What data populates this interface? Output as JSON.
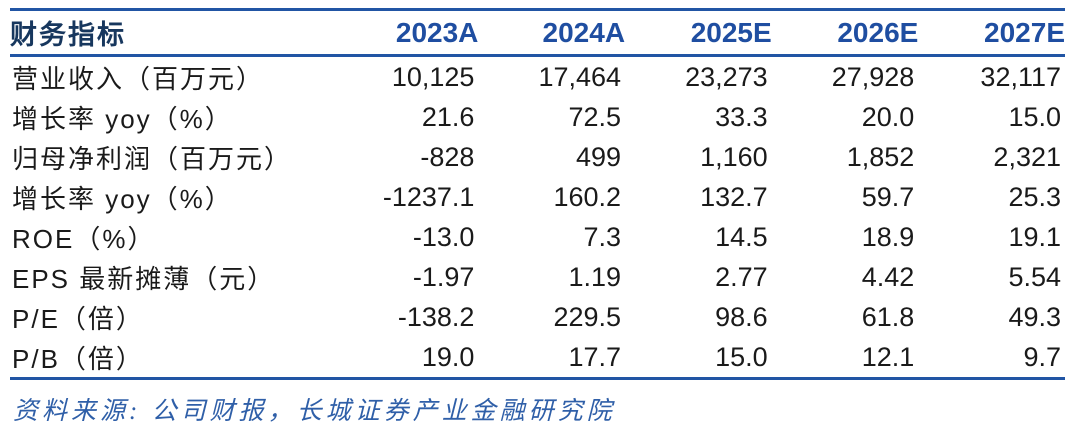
{
  "colors": {
    "rule_blue": "#2155A4",
    "header_label_navy": "#17375E",
    "header_year_blue": "#1F4EA1",
    "body_text": "#1a1a1a",
    "source_note_blue": "#2F5FA8",
    "background": "#ffffff"
  },
  "chart_data": {
    "type": "table",
    "title": "",
    "columns": [
      "财务指标",
      "2023A",
      "2024A",
      "2025E",
      "2026E",
      "2027E"
    ],
    "rows": [
      {
        "label": "营业收入（百万元）",
        "values": [
          "10,125",
          "17,464",
          "23,273",
          "27,928",
          "32,117"
        ]
      },
      {
        "label": "增长率 yoy（%）",
        "values": [
          "21.6",
          "72.5",
          "33.3",
          "20.0",
          "15.0"
        ]
      },
      {
        "label": "归母净利润（百万元）",
        "values": [
          "-828",
          "499",
          "1,160",
          "1,852",
          "2,321"
        ]
      },
      {
        "label": "增长率 yoy（%）",
        "values": [
          "-1237.1",
          "160.2",
          "132.7",
          "59.7",
          "25.3"
        ]
      },
      {
        "label": "ROE（%）",
        "values": [
          "-13.0",
          "7.3",
          "14.5",
          "18.9",
          "19.1"
        ]
      },
      {
        "label": "EPS 最新摊薄（元）",
        "values": [
          "-1.97",
          "1.19",
          "2.77",
          "4.42",
          "5.54"
        ]
      },
      {
        "label": "P/E（倍）",
        "values": [
          "-138.2",
          "229.5",
          "98.6",
          "61.8",
          "49.3"
        ]
      },
      {
        "label": "P/B（倍）",
        "values": [
          "19.0",
          "17.7",
          "15.0",
          "12.1",
          "9.7"
        ]
      }
    ],
    "source_note": "资料来源: 公司财报，长城证券产业金融研究院"
  },
  "table": {
    "header": {
      "label": "财务指标",
      "columns": [
        "2023A",
        "2024A",
        "2025E",
        "2026E",
        "2027E"
      ]
    },
    "source_note": "资料来源: 公司财报，长城证券产业金融研究院"
  }
}
